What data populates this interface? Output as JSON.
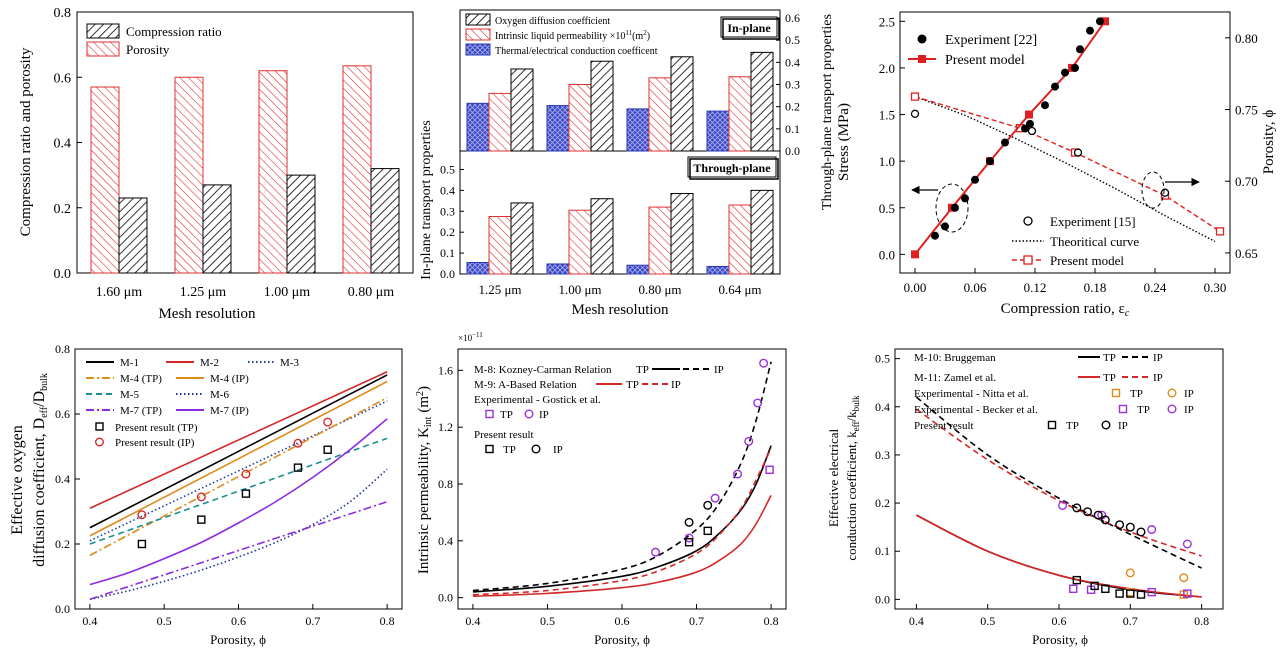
{
  "chart_data": [
    {
      "id": "a",
      "type": "bar",
      "title": "",
      "xlabel": "Mesh resolution",
      "ylabel": "Compression ratio and porosity",
      "categories": [
        "1.60 μm",
        "1.25 μm",
        "1.00 μm",
        "0.80 μm"
      ],
      "series": [
        {
          "name": "Compression ratio",
          "values": [
            0.23,
            0.27,
            0.3,
            0.32
          ]
        },
        {
          "name": "Porosity",
          "values": [
            0.57,
            0.6,
            0.62,
            0.635
          ]
        }
      ],
      "ylim": [
        0,
        0.8
      ],
      "yticks": [
        "0.0",
        "0.2",
        "0.4",
        "0.6",
        "0.8"
      ],
      "legend": "top-left"
    },
    {
      "id": "b",
      "type": "bar",
      "xlabel": "Mesh resolution",
      "ylabel_left": "In-plane transport properties",
      "ylabel_right": "Through-plane transport properties",
      "categories": [
        "1.25 μm",
        "1.00 μm",
        "0.80 μm",
        "0.64 μm"
      ],
      "legend_entries": [
        "Oxygen diffusion coefficient",
        "Intrinsic liquid permeability ×10",
        "11",
        "(m",
        "2",
        ")",
        "Thermal/electrical conduction coefficent"
      ],
      "panels": [
        {
          "name": "In-plane",
          "axis_side": "right",
          "ylim": [
            0,
            0.6
          ],
          "yticks": [
            "0.0",
            "0.1",
            "0.2",
            "0.3",
            "0.4",
            "0.5",
            "0.6"
          ],
          "series": [
            {
              "name": "Thermal/electrical conduction coefficent",
              "values": [
                0.215,
                0.205,
                0.19,
                0.18
              ]
            },
            {
              "name": "Intrinsic liquid permeability",
              "values": [
                0.26,
                0.3,
                0.33,
                0.335
              ]
            },
            {
              "name": "Oxygen diffusion coefficient",
              "values": [
                0.37,
                0.405,
                0.425,
                0.445
              ]
            }
          ]
        },
        {
          "name": "Through-plane",
          "axis_side": "left",
          "ylim": [
            0,
            0.55
          ],
          "yticks": [
            "0.0",
            "0.1",
            "0.2",
            "0.3",
            "0.4",
            "0.5"
          ],
          "series": [
            {
              "name": "Thermal/electrical conduction coefficent",
              "values": [
                0.055,
                0.048,
                0.042,
                0.036
              ]
            },
            {
              "name": "Intrinsic liquid permeability",
              "values": [
                0.275,
                0.305,
                0.32,
                0.33
              ]
            },
            {
              "name": "Oxygen diffusion coefficient",
              "values": [
                0.34,
                0.36,
                0.385,
                0.4
              ]
            }
          ]
        }
      ]
    },
    {
      "id": "c",
      "type": "line",
      "xlabel": "Compression ratio, ε",
      "xlabel_sub": "c",
      "ylabel_left": "Stress (MPa)",
      "ylabel_right": "Porosity, ϕ",
      "xlim": [
        -0.015,
        0.315
      ],
      "xticks": [
        "0.00",
        "0.06",
        "0.12",
        "0.18",
        "0.24",
        "0.30"
      ],
      "ylim_left": [
        -0.2,
        2.6
      ],
      "yticks_left": [
        "0.0",
        "0.5",
        "1.0",
        "1.5",
        "2.0",
        "2.5"
      ],
      "ylim_right": [
        0.636,
        0.818
      ],
      "yticks_right": [
        "0.65",
        "0.70",
        "0.75",
        "0.80"
      ],
      "series": [
        {
          "name": "Experiment [22]",
          "axis": "left",
          "marker": "filled-circle",
          "x": [
            0.02,
            0.03,
            0.04,
            0.05,
            0.06,
            0.075,
            0.09,
            0.11,
            0.115,
            0.13,
            0.14,
            0.15,
            0.16,
            0.165,
            0.175,
            0.185
          ],
          "y": [
            0.2,
            0.3,
            0.5,
            0.6,
            0.8,
            1.0,
            1.2,
            1.35,
            1.4,
            1.6,
            1.8,
            1.95,
            2.0,
            2.2,
            2.4,
            2.5
          ]
        },
        {
          "name": "Present model",
          "axis": "left",
          "marker": "filled-square",
          "line": "solid",
          "x": [
            0.0,
            0.037,
            0.075,
            0.114,
            0.157,
            0.19
          ],
          "y": [
            0.0,
            0.5,
            1.0,
            1.5,
            2.0,
            2.5
          ]
        },
        {
          "name": "Experiment [15]",
          "axis": "right",
          "marker": "open-circle",
          "x": [
            0.0,
            0.117,
            0.163,
            0.25
          ],
          "y": [
            0.747,
            0.735,
            0.72,
            0.692
          ]
        },
        {
          "name": "Theoritical curve",
          "axis": "right",
          "line": "dotted",
          "x": [
            0.0,
            0.05,
            0.1,
            0.15,
            0.2,
            0.25,
            0.3
          ],
          "y": [
            0.759,
            0.746,
            0.73,
            0.713,
            0.695,
            0.676,
            0.658
          ]
        },
        {
          "name": "Present model",
          "axis": "right",
          "marker": "open-square",
          "line": "dashed",
          "x": [
            0.0,
            0.105,
            0.16,
            0.25,
            0.305
          ],
          "y": [
            0.759,
            0.737,
            0.72,
            0.69,
            0.665
          ]
        }
      ],
      "annotations": [
        "left-arrow-to-stress-axis",
        "right-arrow-to-porosity-axis"
      ],
      "legend_top": "top-left",
      "legend_bottom": "bottom-right"
    },
    {
      "id": "d",
      "type": "line",
      "xlabel": "Porosity, ϕ",
      "ylabel_line1": "Effective oxygen",
      "ylabel_line2": "diffusion coefficient, D",
      "ylabel_sub1": "eff",
      "ylabel_mid": "/D",
      "ylabel_sub2": "bulk",
      "xlim": [
        0.38,
        0.82
      ],
      "xticks": [
        "0.4",
        "0.5",
        "0.6",
        "0.7",
        "0.8"
      ],
      "ylim": [
        0.0,
        0.8
      ],
      "yticks": [
        "0.0",
        "0.2",
        "0.4",
        "0.6",
        "0.8"
      ],
      "series": [
        {
          "name": "M-1",
          "color": "#000000",
          "dash": "solid",
          "x": [
            0.4,
            0.8
          ],
          "y": [
            0.25,
            0.72
          ]
        },
        {
          "name": "M-2",
          "color": "#d62728",
          "dash": "solid",
          "x": [
            0.4,
            0.8
          ],
          "y": [
            0.31,
            0.73
          ]
        },
        {
          "name": "M-3",
          "color": "#1f3f9f",
          "dash": "dotted",
          "x": [
            0.4,
            0.8
          ],
          "y": [
            0.21,
            0.64
          ]
        },
        {
          "name": "M-4 (TP)",
          "color": "#e08a1a",
          "dash": "dashdot",
          "x": [
            0.4,
            0.8
          ],
          "y": [
            0.165,
            0.65
          ]
        },
        {
          "name": "M-4 (IP)",
          "color": "#e08a1a",
          "dash": "solid",
          "x": [
            0.4,
            0.8
          ],
          "y": [
            0.225,
            0.7
          ]
        },
        {
          "name": "M-5",
          "color": "#1a8f8f",
          "dash": "dashed",
          "x": [
            0.4,
            0.8
          ],
          "y": [
            0.2,
            0.525
          ]
        },
        {
          "name": "M-6",
          "color": "#2030a0",
          "dash": "dotted",
          "x": [
            0.4,
            0.45,
            0.5,
            0.55,
            0.6,
            0.65,
            0.7,
            0.75,
            0.8
          ],
          "y": [
            0.03,
            0.055,
            0.085,
            0.12,
            0.16,
            0.205,
            0.26,
            0.33,
            0.43
          ]
        },
        {
          "name": "M-7 (TP)",
          "color": "#8a2be2",
          "dash": "dashdot",
          "x": [
            0.4,
            0.8
          ],
          "y": [
            0.03,
            0.33
          ]
        },
        {
          "name": "M-7 (IP)",
          "color": "#8a2be2",
          "dash": "solid",
          "x": [
            0.4,
            0.45,
            0.5,
            0.55,
            0.6,
            0.65,
            0.7,
            0.75,
            0.8
          ],
          "y": [
            0.075,
            0.11,
            0.155,
            0.205,
            0.265,
            0.33,
            0.405,
            0.49,
            0.585
          ]
        },
        {
          "name": "Present result (TP)",
          "marker": "open-square",
          "color": "#000000",
          "x": [
            0.47,
            0.55,
            0.61,
            0.68,
            0.72
          ],
          "y": [
            0.2,
            0.275,
            0.355,
            0.435,
            0.49
          ]
        },
        {
          "name": "Present result (IP)",
          "marker": "open-circle",
          "color": "#d62728",
          "x": [
            0.47,
            0.55,
            0.61,
            0.68,
            0.72
          ],
          "y": [
            0.29,
            0.345,
            0.415,
            0.51,
            0.575
          ]
        }
      ],
      "legend": "top-left"
    },
    {
      "id": "e",
      "type": "line",
      "xlabel": "Porosity, ϕ",
      "ylabel": "Intrinsic permeability, K",
      "ylabel_sub": "int",
      "ylabel_unit": "(m",
      "ylabel_unit_sup": "2",
      "ylabel_unit_end": ")",
      "multiplier": "×10",
      "multiplier_exp": "−11",
      "xlim": [
        0.38,
        0.82
      ],
      "xticks": [
        "0.4",
        "0.5",
        "0.6",
        "0.7",
        "0.8"
      ],
      "ylim": [
        -0.08,
        1.75
      ],
      "yticks": [
        "0.0",
        "0.4",
        "0.8",
        "1.2",
        "1.6"
      ],
      "legend_rows": [
        {
          "label": "M-8: Kozney-Carman Relation",
          "items": [
            "TP",
            "IP"
          ]
        },
        {
          "label": "M-9: A-Based Relation",
          "items": [
            "TP",
            "IP"
          ]
        },
        {
          "label": "Experimental - Gostick et al.",
          "items": [
            "TP",
            "IP"
          ]
        },
        {
          "label": "Present result",
          "items": [
            "TP",
            "IP"
          ]
        }
      ],
      "series": [
        {
          "name": "M-8 TP",
          "color": "#000000",
          "dash": "solid",
          "x": [
            0.4,
            0.5,
            0.6,
            0.65,
            0.7,
            0.73,
            0.76,
            0.78,
            0.8
          ],
          "y": [
            0.04,
            0.08,
            0.15,
            0.22,
            0.33,
            0.45,
            0.62,
            0.8,
            1.07
          ]
        },
        {
          "name": "M-8 IP",
          "color": "#000000",
          "dash": "dashed",
          "x": [
            0.4,
            0.5,
            0.6,
            0.65,
            0.7,
            0.73,
            0.76,
            0.78,
            0.8
          ],
          "y": [
            0.05,
            0.1,
            0.2,
            0.3,
            0.48,
            0.66,
            0.95,
            1.25,
            1.66
          ]
        },
        {
          "name": "M-9 TP",
          "color": "#d62728",
          "dash": "solid",
          "x": [
            0.4,
            0.5,
            0.6,
            0.65,
            0.7,
            0.73,
            0.76,
            0.78,
            0.8
          ],
          "y": [
            0.01,
            0.03,
            0.07,
            0.11,
            0.18,
            0.26,
            0.38,
            0.52,
            0.72
          ]
        },
        {
          "name": "M-9 IP",
          "color": "#d62728",
          "dash": "dashed",
          "x": [
            0.4,
            0.5,
            0.6,
            0.65,
            0.7,
            0.73,
            0.76,
            0.78,
            0.8
          ],
          "y": [
            0.02,
            0.05,
            0.12,
            0.19,
            0.31,
            0.44,
            0.63,
            0.83,
            1.05
          ]
        },
        {
          "name": "Gostick TP",
          "marker": "open-square",
          "color": "#9b30d9",
          "x": [
            0.798
          ],
          "y": [
            0.9
          ]
        },
        {
          "name": "Gostick IP",
          "marker": "open-circle",
          "color": "#9b30d9",
          "x": [
            0.645,
            0.69,
            0.725,
            0.755,
            0.77,
            0.782,
            0.79
          ],
          "y": [
            0.32,
            0.42,
            0.7,
            0.87,
            1.1,
            1.37,
            1.65
          ]
        },
        {
          "name": "Present TP",
          "marker": "open-square",
          "color": "#000000",
          "x": [
            0.69,
            0.715
          ],
          "y": [
            0.39,
            0.47
          ]
        },
        {
          "name": "Present IP",
          "marker": "open-circle",
          "color": "#000000",
          "x": [
            0.69,
            0.715
          ],
          "y": [
            0.53,
            0.65
          ]
        }
      ],
      "legend": "top-left"
    },
    {
      "id": "f",
      "type": "line",
      "xlabel": "Porosity, ϕ",
      "ylabel_line1": "Effective electrical",
      "ylabel_line2": "conduction coefficient, k",
      "ylabel_sub1": "eff",
      "ylabel_mid": "/k",
      "ylabel_sub2": "bulk",
      "xlim": [
        0.37,
        0.83
      ],
      "xticks": [
        "0.4",
        "0.5",
        "0.6",
        "0.7",
        "0.8"
      ],
      "ylim": [
        -0.02,
        0.52
      ],
      "yticks": [
        "0.0",
        "0.1",
        "0.2",
        "0.3",
        "0.4",
        "0.5"
      ],
      "legend_rows": [
        {
          "label": "M-10: Bruggeman",
          "items": [
            "TP",
            "IP"
          ]
        },
        {
          "label": "M-11: Zamel et al.",
          "items": [
            "TP",
            "IP"
          ]
        },
        {
          "label": "Experimental - Nitta et al.",
          "items": [
            "TP",
            "IP"
          ]
        },
        {
          "label": "Experimental - Becker et al.",
          "items": [
            "TP",
            "IP"
          ]
        },
        {
          "label": "Present result",
          "items": [
            "TP",
            "IP"
          ]
        }
      ],
      "series": [
        {
          "name": "M-10 TP",
          "color": "#000000",
          "dash": "solid",
          "x": [
            0.4,
            0.5,
            0.6,
            0.7,
            0.8
          ],
          "y": [
            0.175,
            0.1,
            0.05,
            0.02,
            0.005
          ]
        },
        {
          "name": "M-10 IP",
          "color": "#000000",
          "dash": "dashed",
          "x": [
            0.4,
            0.5,
            0.6,
            0.7,
            0.8
          ],
          "y": [
            0.42,
            0.3,
            0.21,
            0.135,
            0.065
          ]
        },
        {
          "name": "M-11 TP",
          "color": "#d62728",
          "dash": "solid",
          "x": [
            0.4,
            0.5,
            0.6,
            0.7,
            0.8
          ],
          "y": [
            0.175,
            0.1,
            0.05,
            0.022,
            0.005
          ]
        },
        {
          "name": "M-11 IP",
          "color": "#d62728",
          "dash": "dashed",
          "x": [
            0.4,
            0.5,
            0.6,
            0.7,
            0.8
          ],
          "y": [
            0.395,
            0.29,
            0.205,
            0.14,
            0.09
          ]
        },
        {
          "name": "Nitta TP",
          "marker": "open-square",
          "color": "#e08a1a",
          "x": [
            0.7,
            0.775
          ],
          "y": [
            0.015,
            0.01
          ]
        },
        {
          "name": "Nitta IP",
          "marker": "open-circle",
          "color": "#e08a1a",
          "x": [
            0.7,
            0.775
          ],
          "y": [
            0.055,
            0.045
          ]
        },
        {
          "name": "Becker TP",
          "marker": "open-square",
          "color": "#9b30d9",
          "x": [
            0.62,
            0.645,
            0.73,
            0.78
          ],
          "y": [
            0.022,
            0.02,
            0.015,
            0.012
          ]
        },
        {
          "name": "Becker IP",
          "marker": "open-circle",
          "color": "#9b30d9",
          "x": [
            0.605,
            0.66,
            0.73,
            0.78
          ],
          "y": [
            0.195,
            0.175,
            0.145,
            0.115
          ]
        },
        {
          "name": "Present TP",
          "marker": "open-square",
          "color": "#000000",
          "x": [
            0.625,
            0.65,
            0.665,
            0.685,
            0.7,
            0.715
          ],
          "y": [
            0.04,
            0.028,
            0.022,
            0.012,
            0.012,
            0.01
          ]
        },
        {
          "name": "Present IP",
          "marker": "open-circle",
          "color": "#000000",
          "x": [
            0.625,
            0.64,
            0.655,
            0.665,
            0.685,
            0.7,
            0.715
          ],
          "y": [
            0.19,
            0.182,
            0.175,
            0.165,
            0.155,
            0.15,
            0.14
          ]
        }
      ],
      "legend": "top-left"
    }
  ]
}
